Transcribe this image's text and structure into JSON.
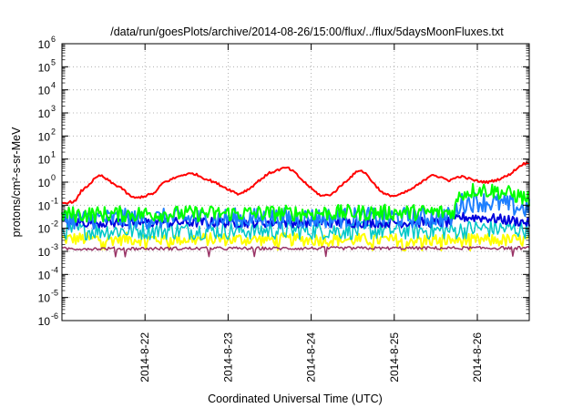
{
  "chart_data": {
    "type": "line",
    "title": "/data/run/goesPlots/archive/2014-08-26/15:00/flux/../flux/5daysMoonFluxes.txt",
    "xlabel": "Coordinated Universal Time (UTC)",
    "ylabel": "protons/cm²-s-sr-MeV",
    "x_unit": "days",
    "xlim": [
      "2014-08-21 00:00",
      "2014-08-26 15:00"
    ],
    "y_scale": "log",
    "ylim": [
      1e-06,
      1000000.0
    ],
    "y_ticks": [
      {
        "value": 1e-06,
        "base": "10",
        "exp": "-6"
      },
      {
        "value": 1e-05,
        "base": "10",
        "exp": "-5"
      },
      {
        "value": 0.0001,
        "base": "10",
        "exp": "-4"
      },
      {
        "value": 0.001,
        "base": "10",
        "exp": "-3"
      },
      {
        "value": 0.01,
        "base": "10",
        "exp": "-2"
      },
      {
        "value": 0.1,
        "base": "10",
        "exp": "-1"
      },
      {
        "value": 1.0,
        "base": "10",
        "exp": "0"
      },
      {
        "value": 10.0,
        "base": "10",
        "exp": "1"
      },
      {
        "value": 100.0,
        "base": "10",
        "exp": "2"
      },
      {
        "value": 1000.0,
        "base": "10",
        "exp": "3"
      },
      {
        "value": 10000.0,
        "base": "10",
        "exp": "4"
      },
      {
        "value": 100000.0,
        "base": "10",
        "exp": "5"
      },
      {
        "value": 1000000.0,
        "base": "10",
        "exp": "6"
      }
    ],
    "x_ticks": [
      {
        "value": "2014-08-22",
        "label": "2014-8-22"
      },
      {
        "value": "2014-08-23",
        "label": "2014-8-23"
      },
      {
        "value": "2014-08-24",
        "label": "2014-8-24"
      },
      {
        "value": "2014-08-25",
        "label": "2014-8-25"
      },
      {
        "value": "2014-08-26",
        "label": "2014-8-26"
      }
    ],
    "grid": true,
    "legend": "none",
    "series": [
      {
        "color": "#ff0000",
        "width": 2,
        "noise": 0.05,
        "points": [
          [
            "2014-08-21 00:00",
            0.12
          ],
          [
            "2014-08-21 04:00",
            0.15
          ],
          [
            "2014-08-21 05:30",
            0.4
          ],
          [
            "2014-08-21 07:00",
            0.6
          ],
          [
            "2014-08-21 09:00",
            1.2
          ],
          [
            "2014-08-21 11:00",
            2.0
          ],
          [
            "2014-08-21 13:00",
            1.3
          ],
          [
            "2014-08-21 15:00",
            0.8
          ],
          [
            "2014-08-21 17:00",
            0.6
          ],
          [
            "2014-08-21 19:00",
            0.3
          ],
          [
            "2014-08-21 21:00",
            0.2
          ],
          [
            "2014-08-22 00:00",
            0.25
          ],
          [
            "2014-08-22 03:00",
            0.35
          ],
          [
            "2014-08-22 05:00",
            0.9
          ],
          [
            "2014-08-22 08:00",
            1.4
          ],
          [
            "2014-08-22 11:00",
            2.1
          ],
          [
            "2014-08-22 14:00",
            2.4
          ],
          [
            "2014-08-22 17:00",
            1.5
          ],
          [
            "2014-08-22 20:00",
            1.0
          ],
          [
            "2014-08-23 00:00",
            0.5
          ],
          [
            "2014-08-23 03:00",
            0.3
          ],
          [
            "2014-08-23 06:00",
            0.5
          ],
          [
            "2014-08-23 09:00",
            1.2
          ],
          [
            "2014-08-23 12:00",
            2.5
          ],
          [
            "2014-08-23 15:00",
            3.6
          ],
          [
            "2014-08-23 17:00",
            4.3
          ],
          [
            "2014-08-23 19:00",
            2.8
          ],
          [
            "2014-08-23 22:00",
            1.0
          ],
          [
            "2014-08-24 01:00",
            0.4
          ],
          [
            "2014-08-24 03:00",
            0.25
          ],
          [
            "2014-08-24 06:00",
            0.3
          ],
          [
            "2014-08-24 09:00",
            0.8
          ],
          [
            "2014-08-24 12:00",
            2.0
          ],
          [
            "2014-08-24 14:00",
            3.5
          ],
          [
            "2014-08-24 16:00",
            2.2
          ],
          [
            "2014-08-24 18:00",
            0.9
          ],
          [
            "2014-08-24 21:00",
            0.3
          ],
          [
            "2014-08-25 00:00",
            0.25
          ],
          [
            "2014-08-25 02:00",
            0.3
          ],
          [
            "2014-08-25 05:00",
            0.5
          ],
          [
            "2014-08-25 08:00",
            1.0
          ],
          [
            "2014-08-25 11:00",
            2.3
          ],
          [
            "2014-08-25 13:00",
            1.6
          ],
          [
            "2014-08-25 16:00",
            1.2
          ],
          [
            "2014-08-25 19:00",
            1.8
          ],
          [
            "2014-08-25 21:00",
            1.5
          ],
          [
            "2014-08-26 00:00",
            1.1
          ],
          [
            "2014-08-26 03:00",
            1.0
          ],
          [
            "2014-08-26 06:00",
            1.3
          ],
          [
            "2014-08-26 09:00",
            2.0
          ],
          [
            "2014-08-26 11:00",
            3.5
          ],
          [
            "2014-08-26 13:00",
            6.0
          ],
          [
            "2014-08-26 15:00",
            7.0
          ]
        ]
      },
      {
        "color": "#00ff00",
        "width": 2,
        "noise": 0.35,
        "points": [
          [
            "2014-08-21 00:00",
            0.04
          ],
          [
            "2014-08-25 17:00",
            0.05
          ],
          [
            "2014-08-25 19:00",
            0.3
          ],
          [
            "2014-08-26 00:00",
            0.5
          ],
          [
            "2014-08-26 06:00",
            0.4
          ],
          [
            "2014-08-26 12:00",
            0.25
          ],
          [
            "2014-08-26 15:00",
            0.18
          ]
        ]
      },
      {
        "color": "#1e7fff",
        "width": 2,
        "noise": 0.45,
        "points": [
          [
            "2014-08-21 00:00",
            0.025
          ],
          [
            "2014-08-25 17:00",
            0.03
          ],
          [
            "2014-08-25 19:00",
            0.12
          ],
          [
            "2014-08-26 00:00",
            0.15
          ],
          [
            "2014-08-26 06:00",
            0.12
          ],
          [
            "2014-08-26 12:00",
            0.08
          ],
          [
            "2014-08-26 15:00",
            0.07
          ]
        ]
      },
      {
        "color": "#0000dd",
        "width": 2,
        "noise": 0.22,
        "points": [
          [
            "2014-08-21 00:00",
            0.018
          ],
          [
            "2014-08-25 17:00",
            0.018
          ],
          [
            "2014-08-25 19:00",
            0.03
          ],
          [
            "2014-08-26 00:00",
            0.03
          ],
          [
            "2014-08-26 06:00",
            0.025
          ],
          [
            "2014-08-26 12:00",
            0.02
          ],
          [
            "2014-08-26 15:00",
            0.017
          ]
        ]
      },
      {
        "color": "#00c8c8",
        "width": 1.5,
        "noise": 0.4,
        "points": [
          [
            "2014-08-21 00:00",
            0.008
          ],
          [
            "2014-08-25 18:00",
            0.008
          ],
          [
            "2014-08-26 00:00",
            0.01
          ],
          [
            "2014-08-26 15:00",
            0.009
          ]
        ]
      },
      {
        "color": "#ffff00",
        "width": 2,
        "noise": 0.28,
        "points": [
          [
            "2014-08-21 00:00",
            0.0035
          ],
          [
            "2014-08-26 15:00",
            0.003
          ]
        ]
      },
      {
        "color": "#993366",
        "width": 1.5,
        "noise": 0.07,
        "points": [
          [
            "2014-08-21 00:00",
            0.0013
          ],
          [
            "2014-08-26 15:00",
            0.0014
          ]
        ]
      }
    ]
  }
}
